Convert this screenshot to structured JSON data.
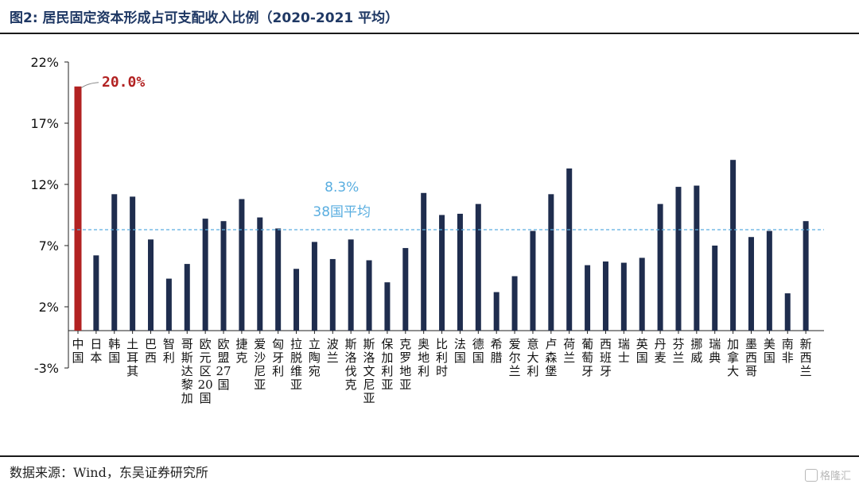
{
  "figure": {
    "title": "图2:  居民固定资本形成占可支配收入比例（2020-2021 平均）",
    "source": "数据来源：Wind，东吴证券研究所",
    "watermark": "格隆汇"
  },
  "colors": {
    "highlight_bar": "#b22222",
    "bar": "#1f2d4e",
    "average_line": "#5aaee0",
    "annotation_highlight": "#b22222",
    "annotation_average": "#5aaee0"
  },
  "chart_data": {
    "type": "bar",
    "y_tick_labels": [
      "22%",
      "17%",
      "12%",
      "7%",
      "2%",
      "-3%"
    ],
    "y_ticks": [
      22,
      17,
      12,
      7,
      2,
      -3
    ],
    "ylim": [
      -3,
      22
    ],
    "categories": [
      "中国",
      "日本",
      "韩国",
      "土耳其",
      "巴西",
      "智利",
      "哥斯达黎加",
      "欧元区20国",
      "欧盟27国",
      "捷克",
      "爱沙尼亚",
      "匈牙利",
      "拉脱维亚",
      "立陶宛",
      "波兰",
      "斯洛伐克",
      "斯洛文尼亚",
      "保加利亚",
      "克罗地亚",
      "奥地利",
      "比利时",
      "法国",
      "德国",
      "希腊",
      "爱尔兰",
      "意大利",
      "卢森堡",
      "荷兰",
      "葡萄牙",
      "西班牙",
      "瑞士",
      "英国",
      "丹麦",
      "芬兰",
      "挪威",
      "瑞典",
      "加拿大",
      "墨西哥",
      "美国",
      "南非",
      "新西兰"
    ],
    "values": [
      20.0,
      6.2,
      11.2,
      11.0,
      7.5,
      4.3,
      5.5,
      9.2,
      9.0,
      10.8,
      9.3,
      8.4,
      5.1,
      7.3,
      5.9,
      7.5,
      5.8,
      4.0,
      6.8,
      11.3,
      9.5,
      9.6,
      10.4,
      3.2,
      4.5,
      8.2,
      11.2,
      13.3,
      5.4,
      5.7,
      5.6,
      6.0,
      10.4,
      11.8,
      11.9,
      7.0,
      14.0,
      7.7,
      8.2,
      3.1,
      9.0
    ],
    "highlight_index": 0,
    "average": 8.3,
    "annotations": {
      "highlight_label": "20.0%",
      "average_value_label": "8.3%",
      "average_desc_label": "38国平均"
    },
    "grid": false,
    "legend": "none"
  }
}
